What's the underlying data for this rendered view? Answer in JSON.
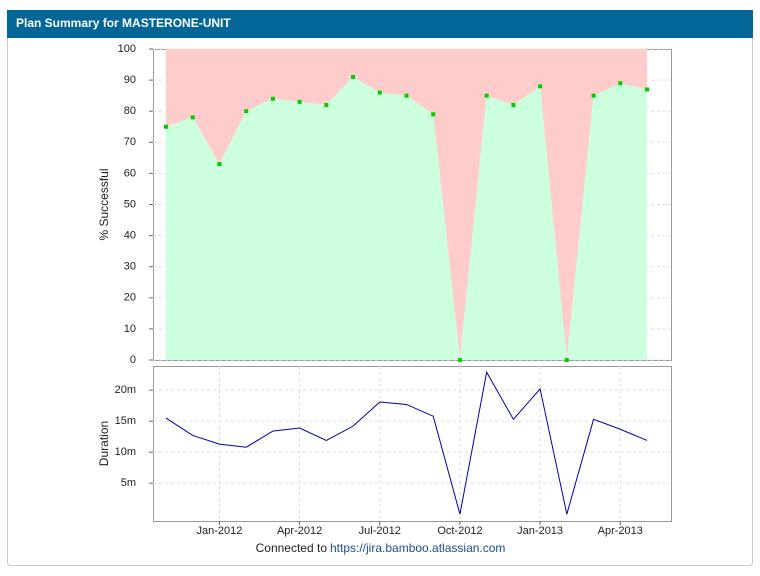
{
  "header": {
    "title": "Plan Summary for MASTERONE-UNIT"
  },
  "chart_data": [
    {
      "type": "area",
      "ylabel": "% Successful",
      "values": [
        75,
        78,
        63,
        80,
        84,
        83,
        82,
        91,
        86,
        85,
        79,
        0,
        85,
        82,
        88,
        0,
        85,
        89,
        87
      ],
      "color": "#00cc00",
      "fill": "#ccffdd",
      "remainder_fill": "#ffcccc",
      "ylim": [
        0,
        100
      ],
      "yticks": [
        0,
        10,
        20,
        30,
        40,
        50,
        60,
        70,
        80,
        90,
        100
      ],
      "grid": true
    },
    {
      "type": "line",
      "ylabel": "Duration",
      "categories": [
        null,
        null,
        "Jan-2012",
        null,
        null,
        "Apr-2012",
        null,
        null,
        "Jul-2012",
        null,
        null,
        "Oct-2012",
        null,
        null,
        "Jan-2013",
        null,
        null,
        "Apr-2013",
        null
      ],
      "values": [
        15.5,
        12.7,
        11.3,
        10.8,
        13.4,
        13.9,
        11.9,
        14.2,
        18.1,
        17.7,
        15.8,
        0,
        22.9,
        15.3,
        20.2,
        0,
        15.3,
        13.7,
        11.9
      ],
      "color": "#0000aa",
      "ylim": [
        -1.1,
        23.9
      ],
      "yticks": [
        {
          "value": 5,
          "label": "5m"
        },
        {
          "value": 10,
          "label": "10m"
        },
        {
          "value": 15,
          "label": "15m"
        },
        {
          "value": 20,
          "label": "20m"
        }
      ],
      "grid": true
    }
  ],
  "footer": {
    "text": "Connected to",
    "link": "https://jira.bamboo.atlassian.com"
  }
}
